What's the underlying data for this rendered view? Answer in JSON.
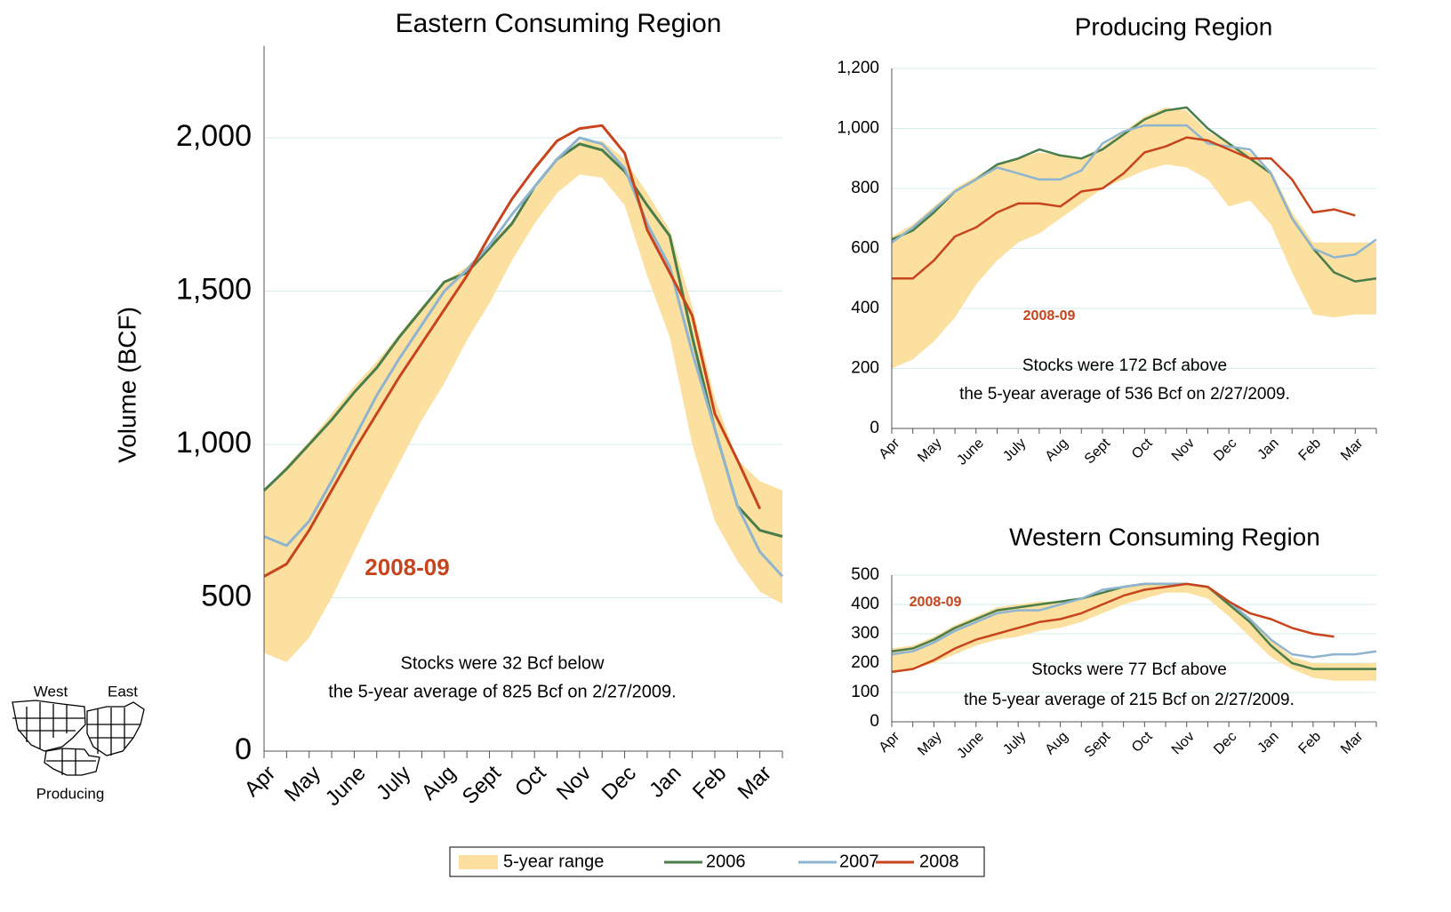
{
  "map": {
    "west": "West",
    "east": "East",
    "producing": "Producing"
  },
  "chart_data": [
    {
      "type": "line",
      "title": "Eastern Consuming Region",
      "ylabel": "Volume (BCF)",
      "categories": [
        "Apr",
        null,
        "May",
        null,
        "June",
        null,
        "July",
        null,
        "Aug",
        null,
        "Sept",
        null,
        "Oct",
        null,
        "Nov",
        null,
        "Dec",
        null,
        "Jan",
        null,
        "Feb",
        null,
        "Mar",
        null
      ],
      "range": {
        "name": "5-year range",
        "color": "#fbe09f",
        "high": [
          850,
          930,
          1010,
          1100,
          1190,
          1270,
          1360,
          1450,
          1530,
          1580,
          1650,
          1730,
          1830,
          1930,
          1990,
          1990,
          1930,
          1820,
          1700,
          1450,
          1150,
          950,
          880,
          850
        ],
        "low": [
          320,
          290,
          370,
          500,
          650,
          800,
          940,
          1080,
          1200,
          1340,
          1460,
          1600,
          1720,
          1820,
          1880,
          1870,
          1780,
          1550,
          1350,
          1000,
          750,
          620,
          520,
          480
        ]
      },
      "series": [
        {
          "name": "2006",
          "color": "#4a7d4a",
          "values": [
            850,
            920,
            1000,
            1080,
            1170,
            1250,
            1350,
            1440,
            1530,
            1560,
            1640,
            1720,
            1840,
            1930,
            1980,
            1960,
            1890,
            1780,
            1680,
            1350,
            1050,
            800,
            720,
            700
          ]
        },
        {
          "name": "2007",
          "color": "#8fb4d0",
          "values": [
            700,
            670,
            750,
            880,
            1020,
            1160,
            1280,
            1390,
            1500,
            1570,
            1650,
            1750,
            1840,
            1930,
            2000,
            1980,
            1900,
            1720,
            1580,
            1300,
            1050,
            800,
            650,
            570
          ]
        },
        {
          "name": "2008",
          "color": "#c8441c",
          "values": [
            570,
            610,
            720,
            850,
            980,
            1100,
            1220,
            1330,
            1440,
            1550,
            1680,
            1800,
            1900,
            1990,
            2030,
            2040,
            1950,
            1700,
            1560,
            1420,
            1100,
            950,
            790,
            null
          ]
        }
      ],
      "ylim": [
        0,
        2300
      ],
      "yticks": [
        0,
        500,
        {
          "value": 1000,
          "label": "1,000"
        },
        {
          "value": 1500,
          "label": "1,500"
        },
        {
          "value": 2000,
          "label": "2,000"
        }
      ],
      "grid": true,
      "series_label": "2008-09",
      "note": [
        "Stocks were 32 Bcf below",
        "the 5-year average of 825 Bcf on 2/27/2009."
      ]
    },
    {
      "type": "line",
      "title": "Producing Region",
      "categories": [
        "Apr",
        null,
        "May",
        null,
        "June",
        null,
        "July",
        null,
        "Aug",
        null,
        "Sept",
        null,
        "Oct",
        null,
        "Nov",
        null,
        "Dec",
        null,
        "Jan",
        null,
        "Feb",
        null,
        "Mar",
        null
      ],
      "range": {
        "name": "5-year range",
        "color": "#fbe09f",
        "high": [
          640,
          680,
          740,
          800,
          840,
          880,
          900,
          920,
          910,
          900,
          940,
          990,
          1040,
          1070,
          1060,
          990,
          950,
          920,
          860,
          720,
          620,
          620,
          620,
          620
        ],
        "low": [
          200,
          230,
          290,
          370,
          480,
          560,
          620,
          650,
          700,
          750,
          800,
          830,
          860,
          880,
          870,
          830,
          740,
          760,
          680,
          520,
          380,
          370,
          380,
          380
        ]
      },
      "series": [
        {
          "name": "2006",
          "color": "#4a7d4a",
          "values": [
            630,
            660,
            720,
            790,
            830,
            880,
            900,
            930,
            910,
            900,
            930,
            980,
            1030,
            1060,
            1070,
            1000,
            950,
            900,
            850,
            700,
            600,
            520,
            490,
            500
          ]
        },
        {
          "name": "2007",
          "color": "#8fb4d0",
          "values": [
            620,
            670,
            730,
            790,
            830,
            870,
            850,
            830,
            830,
            860,
            950,
            990,
            1010,
            1010,
            1010,
            950,
            940,
            930,
            850,
            700,
            600,
            570,
            580,
            630
          ]
        },
        {
          "name": "2008",
          "color": "#c8441c",
          "values": [
            500,
            500,
            560,
            640,
            670,
            720,
            750,
            750,
            740,
            790,
            800,
            850,
            920,
            940,
            970,
            960,
            930,
            900,
            900,
            830,
            720,
            730,
            710,
            null
          ]
        }
      ],
      "ylim": [
        0,
        1200
      ],
      "yticks": [
        0,
        200,
        400,
        600,
        800,
        {
          "value": 1000,
          "label": "1,000"
        },
        {
          "value": 1200,
          "label": "1,200"
        }
      ],
      "grid": true,
      "series_label": "2008-09",
      "note": [
        "Stocks were 172 Bcf above",
        "the 5-year average of 536 Bcf on 2/27/2009."
      ]
    },
    {
      "type": "line",
      "title": "Western Consuming Region",
      "categories": [
        "Apr",
        null,
        "May",
        null,
        "June",
        null,
        "July",
        null,
        "Aug",
        null,
        "Sept",
        null,
        "Oct",
        null,
        "Nov",
        null,
        "Dec",
        null,
        "Jan",
        null,
        "Feb",
        null,
        "Mar",
        null
      ],
      "range": {
        "name": "5-year range",
        "color": "#fbe09f",
        "high": [
          250,
          260,
          290,
          330,
          360,
          390,
          400,
          410,
          410,
          420,
          440,
          460,
          470,
          470,
          470,
          460,
          410,
          350,
          280,
          220,
          200,
          200,
          200,
          200
        ],
        "low": [
          170,
          180,
          200,
          230,
          260,
          280,
          290,
          310,
          320,
          340,
          370,
          400,
          420,
          440,
          440,
          420,
          360,
          290,
          220,
          180,
          150,
          140,
          140,
          140
        ]
      },
      "series": [
        {
          "name": "2006",
          "color": "#4a7d4a",
          "values": [
            240,
            250,
            280,
            320,
            350,
            380,
            390,
            400,
            410,
            420,
            440,
            460,
            470,
            470,
            470,
            460,
            400,
            340,
            260,
            200,
            180,
            180,
            180,
            180
          ]
        },
        {
          "name": "2007",
          "color": "#8fb4d0",
          "values": [
            230,
            240,
            270,
            310,
            340,
            370,
            380,
            380,
            400,
            420,
            450,
            460,
            470,
            470,
            470,
            460,
            410,
            350,
            280,
            230,
            220,
            230,
            230,
            240
          ]
        },
        {
          "name": "2008",
          "color": "#c8441c",
          "values": [
            170,
            180,
            210,
            250,
            280,
            300,
            320,
            340,
            350,
            370,
            400,
            430,
            450,
            460,
            470,
            460,
            410,
            370,
            350,
            320,
            300,
            290,
            null,
            null
          ]
        }
      ],
      "ylim": [
        0,
        500
      ],
      "yticks": [
        0,
        100,
        200,
        300,
        400,
        500
      ],
      "grid": true,
      "series_label": "2008-09",
      "note": [
        "Stocks were 77 Bcf above",
        "the 5-year average of 215 Bcf on 2/27/2009."
      ]
    }
  ]
}
